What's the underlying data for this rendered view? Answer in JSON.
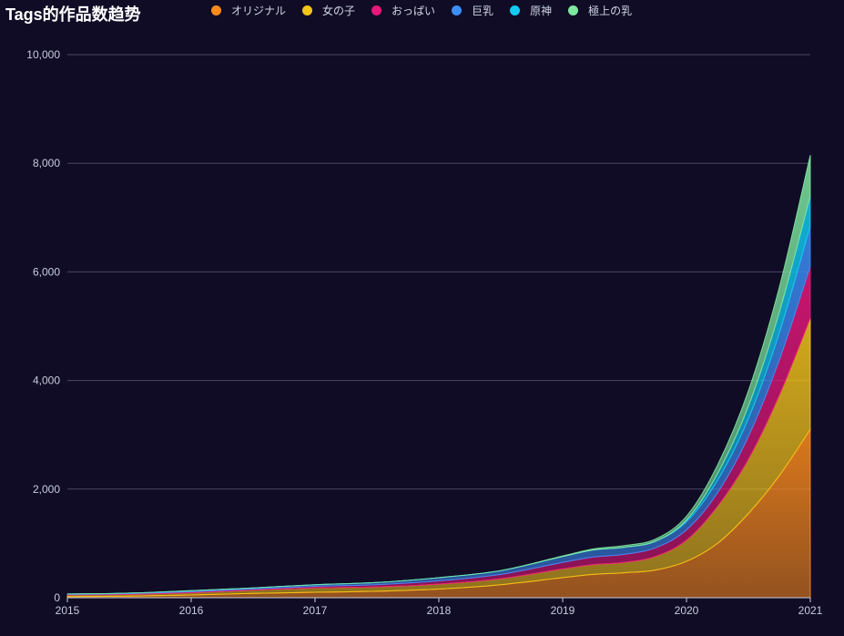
{
  "chart_data": {
    "type": "area",
    "stacked": true,
    "title": "Tags的作品数趋势",
    "x_ticks": [
      "2015",
      "2016",
      "2017",
      "2018",
      "2019",
      "2020",
      "2021"
    ],
    "x": [
      2015,
      2015.5,
      2016,
      2016.5,
      2017,
      2017.5,
      2018,
      2018.5,
      2019,
      2019.25,
      2019.5,
      2019.75,
      2020,
      2020.25,
      2020.5,
      2020.75,
      2021
    ],
    "ylim": [
      0,
      10000
    ],
    "y_ticks": [
      0,
      2000,
      4000,
      6000,
      8000,
      10000
    ],
    "y_tick_labels": [
      "0",
      "2,000",
      "4,000",
      "6,000",
      "8,000",
      "10,000"
    ],
    "grid": true,
    "legend_position": "top",
    "series": [
      {
        "name": "オリジナル",
        "color": "#ff8c1a",
        "values": [
          20,
          30,
          50,
          80,
          100,
          120,
          160,
          240,
          370,
          430,
          460,
          510,
          670,
          1000,
          1550,
          2250,
          3100
        ]
      },
      {
        "name": "女の子",
        "color": "#f5c518",
        "values": [
          30,
          30,
          40,
          60,
          80,
          80,
          90,
          110,
          160,
          180,
          190,
          250,
          390,
          680,
          1000,
          1480,
          2050
        ]
      },
      {
        "name": "おっぱい",
        "color": "#e8177a",
        "values": [
          10,
          15,
          20,
          20,
          30,
          40,
          60,
          80,
          120,
          140,
          150,
          160,
          190,
          250,
          420,
          650,
          950
        ]
      },
      {
        "name": "巨乳",
        "color": "#3d8ef7",
        "values": [
          10,
          10,
          20,
          20,
          30,
          40,
          60,
          70,
          110,
          130,
          130,
          120,
          150,
          230,
          330,
          500,
          750
        ]
      },
      {
        "name": "原神",
        "color": "#12cbf2",
        "values": [
          0,
          0,
          0,
          0,
          0,
          0,
          0,
          0,
          0,
          0,
          0,
          0,
          30,
          120,
          230,
          380,
          550
        ]
      },
      {
        "name": "極上の乳",
        "color": "#7ee8a0",
        "values": [
          0,
          0,
          0,
          0,
          0,
          0,
          0,
          0,
          10,
          20,
          30,
          40,
          70,
          160,
          280,
          460,
          750
        ]
      }
    ]
  }
}
